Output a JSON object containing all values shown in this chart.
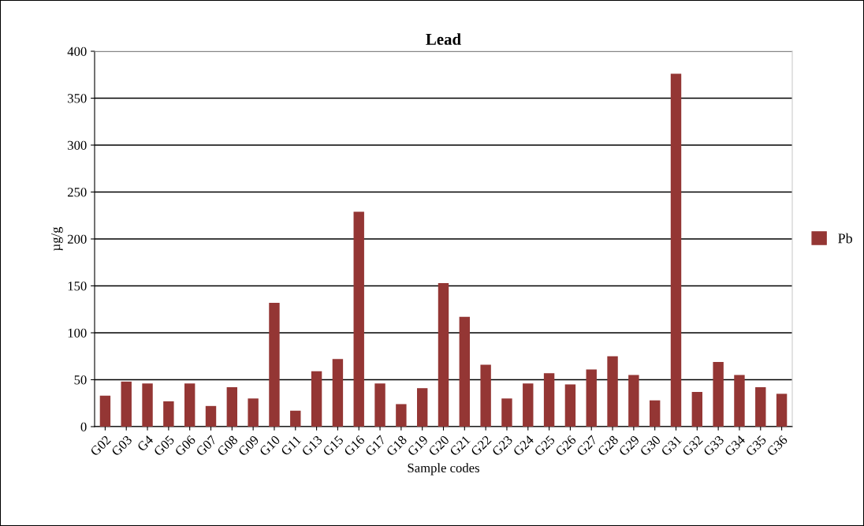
{
  "chart_data": {
    "type": "bar",
    "title": "Lead",
    "xlabel": "Sample codes",
    "ylabel": "µg/g",
    "categories": [
      "G02",
      "G03",
      "G4",
      "G05",
      "G06",
      "G07",
      "G08",
      "G09",
      "G10",
      "G11",
      "G13",
      "G15",
      "G16",
      "G17",
      "G18",
      "G19",
      "G20",
      "G21",
      "G22",
      "G23",
      "G24",
      "G25",
      "G26",
      "G27",
      "G28",
      "G29",
      "G30",
      "G31",
      "G32",
      "G33",
      "G34",
      "G35",
      "G36"
    ],
    "series": [
      {
        "name": "Pb",
        "color": "#943634",
        "values": [
          33,
          48,
          46,
          27,
          46,
          22,
          42,
          30,
          132,
          17,
          59,
          72,
          229,
          46,
          24,
          41,
          153,
          117,
          66,
          30,
          46,
          57,
          45,
          61,
          75,
          55,
          28,
          376,
          37,
          69,
          55,
          42,
          35
        ]
      }
    ],
    "ylim": [
      0,
      400
    ],
    "yticks": [
      0,
      50,
      100,
      150,
      200,
      250,
      300,
      350,
      400
    ],
    "grid": "y",
    "legend": "right"
  }
}
